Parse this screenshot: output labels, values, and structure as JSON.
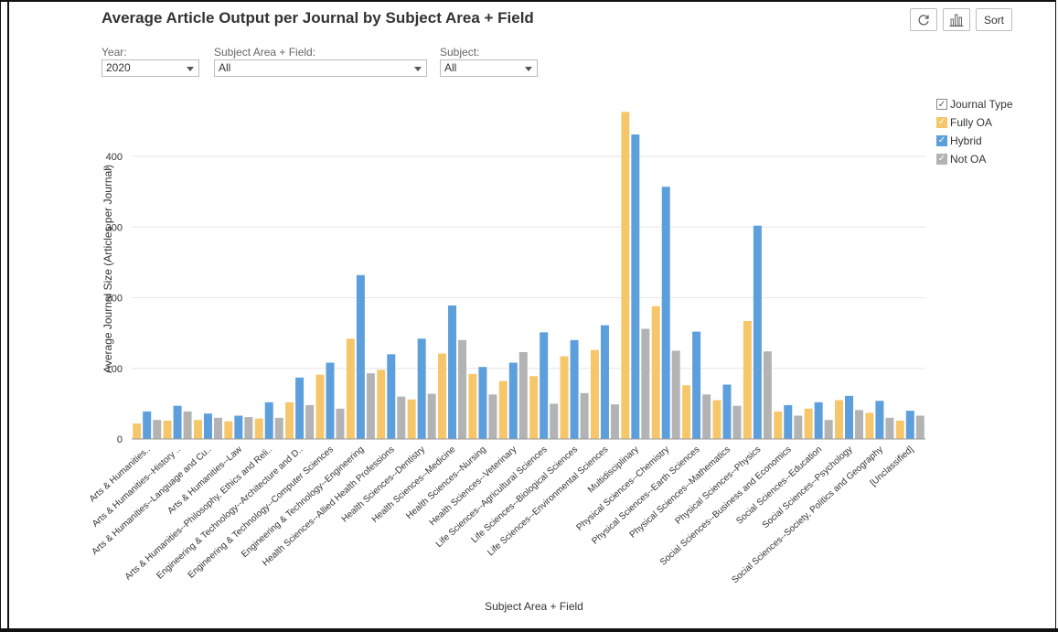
{
  "title": "Average Article Output per Journal by Subject Area + Field",
  "toolbar": {
    "sort_label": "Sort"
  },
  "filters": {
    "year": {
      "label": "Year:",
      "value": "2020"
    },
    "subject_area": {
      "label": "Subject Area + Field:",
      "value": "All"
    },
    "subject": {
      "label": "Subject:",
      "value": "All"
    }
  },
  "legend": {
    "title": "Journal Type",
    "items": [
      {
        "label": "Fully OA",
        "color": "#f6c76a"
      },
      {
        "label": "Hybrid",
        "color": "#5c9fdc"
      },
      {
        "label": "Not OA",
        "color": "#b3b3b3"
      }
    ]
  },
  "chart_data": {
    "type": "bar",
    "title": "Average Article Output per Journal by Subject Area + Field",
    "xlabel": "Subject Area + Field",
    "ylabel": "Average Journal Size (Articles per Journal)",
    "ylim": [
      0,
      475
    ],
    "yticks": [
      0,
      100,
      200,
      300,
      400
    ],
    "grid": true,
    "legend_position": "top-right",
    "categories": [
      "Arts & Humanities..",
      "Arts & Humanities--History ..",
      "Arts & Humanities--Language and Cu..",
      "Arts & Humanities--Law",
      "Arts & Humanities--Philosophy, Ethics and Reli..",
      "Engineering & Technology--Architecture and D..",
      "Engineering & Technology--Computer Sciences",
      "Engineering & Technology--Engineering",
      "Health Sciences--Allied Health Professions",
      "Health Sciences--Dentistry",
      "Health Sciences--Medicine",
      "Health Sciences--Nursing",
      "Health Sciences--Veterinary",
      "Life Sciences--Agricultural Sciences",
      "Life Sciences--Biological Sciences",
      "Life Sciences--Environmental Sciences",
      "Multidisciplinary",
      "Physical Sciences--Chemistry",
      "Physical Sciences--Earth Sciences",
      "Physical Sciences--Mathematics",
      "Physical Sciences--Physics",
      "Social Sciences--Business and Economics",
      "Social Sciences--Education",
      "Social Sciences--Psychology",
      "Social Sciences--Society, Politics and Geography",
      "[Unclassified]"
    ],
    "series": [
      {
        "name": "Fully OA",
        "color": "#f6c76a",
        "values": [
          22,
          26,
          27,
          25,
          29,
          52,
          91,
          142,
          98,
          56,
          121,
          92,
          82,
          89,
          117,
          126,
          463,
          188,
          76,
          55,
          167,
          39,
          43,
          55,
          37,
          26
        ]
      },
      {
        "name": "Hybrid",
        "color": "#5c9fdc",
        "values": [
          39,
          47,
          36,
          33,
          52,
          87,
          108,
          232,
          120,
          142,
          189,
          102,
          108,
          151,
          140,
          161,
          431,
          357,
          152,
          77,
          302,
          48,
          52,
          61,
          54,
          40
        ]
      },
      {
        "name": "Not OA",
        "color": "#b3b3b3",
        "values": [
          27,
          39,
          30,
          31,
          30,
          48,
          43,
          93,
          60,
          64,
          140,
          63,
          123,
          50,
          65,
          49,
          156,
          125,
          63,
          47,
          124,
          33,
          27,
          41,
          30,
          33
        ]
      }
    ]
  }
}
